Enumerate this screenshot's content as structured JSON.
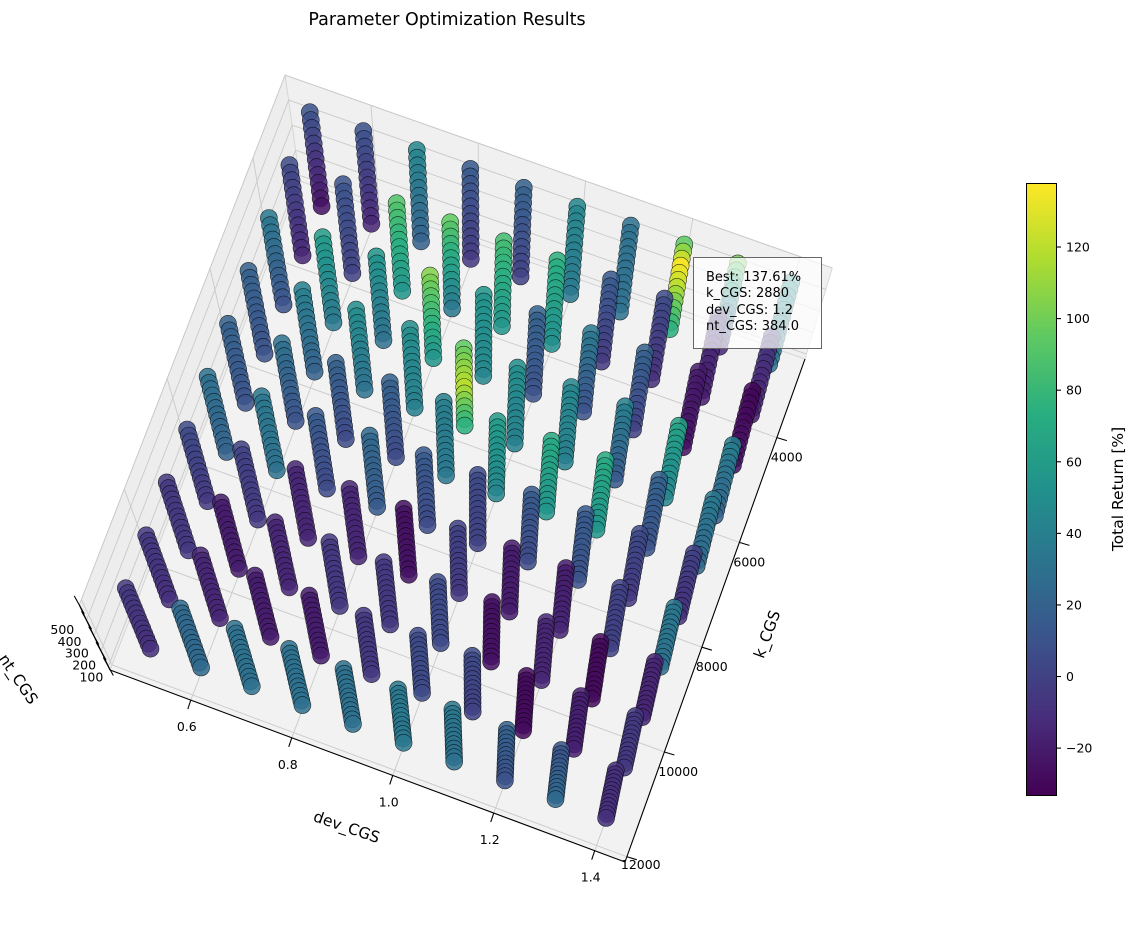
{
  "chart_data": {
    "type": "scatter",
    "projection": "3d",
    "title": "Parameter Optimization Results",
    "xlabel": "dev_CGS",
    "ylabel": "k_CGS",
    "zlabel": "nt_CGS",
    "xlim": [
      0.44,
      1.46
    ],
    "ylim": [
      2500,
      12100
    ],
    "zlim": [
      77,
      499
    ],
    "x_ticks": [
      0.6,
      0.8,
      1.0,
      1.2,
      1.4
    ],
    "x_tick_labels": [
      "0.6",
      "0.8",
      "1.0",
      "1.2",
      "1.4"
    ],
    "y_ticks": [
      4000,
      6000,
      8000,
      10000,
      12000
    ],
    "y_tick_labels": [
      "4000",
      "6000",
      "8000",
      "10000",
      "12000"
    ],
    "z_ticks": [
      100,
      200,
      300,
      400,
      500
    ],
    "z_tick_labels": [
      "100",
      "200",
      "300",
      "400",
      "500"
    ],
    "grid": true,
    "dev_values": [
      0.5,
      0.6,
      0.7,
      0.8,
      0.9,
      1.0,
      1.1,
      1.2,
      1.3,
      1.4
    ],
    "k_values": [
      2880,
      3840,
      4800,
      5760,
      6720,
      7680,
      8640,
      9600,
      10560,
      11520
    ],
    "nt_values": [
      96,
      128,
      160,
      192,
      224,
      256,
      288,
      320,
      352,
      384,
      416,
      448,
      480
    ],
    "color_value": "Total Return [%]",
    "total_return_by_k_then_dev_from_nt_max_to_nt_min": [
      [
        [
          10,
          -25
        ],
        [
          10,
          -15
        ],
        [
          45,
          20
        ],
        [
          15,
          -5
        ],
        [
          20,
          0
        ],
        [
          45,
          35
        ],
        [
          30,
          30
        ],
        [
          95,
          137.61,
          120,
          95,
          75
        ],
        [
          100,
          -15
        ],
        [
          55,
          30
        ]
      ],
      [
        [
          5,
          -15
        ],
        [
          10,
          0
        ],
        [
          90,
          55
        ],
        [
          95,
          35
        ],
        [
          85,
          55
        ],
        [
          75,
          50
        ],
        [
          15,
          -5
        ],
        [
          5,
          -10
        ],
        [
          -10,
          -20
        ],
        [
          -5,
          -20
        ]
      ],
      [
        [
          35,
          10
        ],
        [
          60,
          35
        ],
        [
          55,
          30
        ],
        [
          105,
          55
        ],
        [
          55,
          45
        ],
        [
          20,
          10
        ],
        [
          35,
          10
        ],
        [
          20,
          0
        ],
        [
          -20,
          -25
        ],
        [
          -30,
          -25
        ]
      ],
      [
        [
          20,
          10
        ],
        [
          40,
          20
        ],
        [
          50,
          30
        ],
        [
          50,
          40
        ],
        [
          95,
          120,
          75
        ],
        [
          50,
          40
        ],
        [
          45,
          40
        ],
        [
          40,
          15
        ],
        [
          65,
          45
        ],
        [
          40,
          20
        ]
      ],
      [
        [
          20,
          10
        ],
        [
          30,
          10
        ],
        [
          20,
          5
        ],
        [
          20,
          5
        ],
        [
          40,
          35
        ],
        [
          60,
          45
        ],
        [
          70,
          55
        ],
        [
          70,
          55
        ],
        [
          20,
          10
        ],
        [
          35,
          25
        ]
      ],
      [
        [
          30,
          20
        ],
        [
          35,
          30
        ],
        [
          15,
          5
        ],
        [
          25,
          15
        ],
        [
          15,
          5
        ],
        [
          5,
          0
        ],
        [
          15,
          5
        ],
        [
          15,
          10
        ],
        [
          5,
          -5
        ],
        [
          0,
          -10
        ]
      ],
      [
        [
          5,
          -5
        ],
        [
          0,
          -5
        ],
        [
          -15,
          -15
        ],
        [
          -15,
          -15
        ],
        [
          -25,
          -25
        ],
        [
          0,
          -5
        ],
        [
          -20,
          -20
        ],
        [
          -20,
          -15
        ],
        [
          0,
          0
        ],
        [
          35,
          30
        ]
      ],
      [
        [
          -5,
          -5
        ],
        [
          -20,
          -20
        ],
        [
          -15,
          -15
        ],
        [
          -5,
          -5
        ],
        [
          -5,
          -5
        ],
        [
          5,
          5
        ],
        [
          -25,
          -25
        ],
        [
          -15,
          -15
        ],
        [
          -28,
          -28
        ],
        [
          -15,
          -15
        ]
      ],
      [
        [
          -5,
          -10
        ],
        [
          -15,
          -15
        ],
        [
          -20,
          -20
        ],
        [
          -20,
          -20
        ],
        [
          -5,
          -5
        ],
        [
          5,
          5
        ],
        [
          5,
          0
        ],
        [
          -28,
          -28
        ],
        [
          -18,
          -18
        ],
        [
          -5,
          -5
        ]
      ],
      [
        [
          -5,
          -10
        ],
        [
          25,
          25
        ],
        [
          30,
          30
        ],
        [
          30,
          30
        ],
        [
          30,
          30
        ],
        [
          35,
          35
        ],
        [
          35,
          30
        ],
        [
          20,
          10
        ],
        [
          10,
          25
        ],
        [
          -10,
          -10
        ]
      ]
    ],
    "best": {
      "return_pct": 137.61,
      "k_CGS": 2880,
      "dev_CGS": 1.2,
      "nt_CGS": 384.0
    },
    "annotation": [
      "Best: 137.61%",
      "k_CGS: 2880",
      "dev_CGS: 1.2",
      "nt_CGS: 384.0"
    ],
    "colorbar": {
      "label": "Total Return [%]",
      "colormap": "viridis",
      "range": [
        -33.1,
        137.61
      ],
      "ticks": [
        -20,
        0,
        20,
        40,
        60,
        80,
        100,
        120
      ],
      "tick_labels": [
        "−20",
        "0",
        "20",
        "40",
        "60",
        "80",
        "100",
        "120"
      ],
      "stops": [
        "#440154",
        "#472d7b",
        "#3b528b",
        "#2c728e",
        "#21918c",
        "#28ae80",
        "#5ec962",
        "#addc30",
        "#fde725"
      ]
    }
  }
}
